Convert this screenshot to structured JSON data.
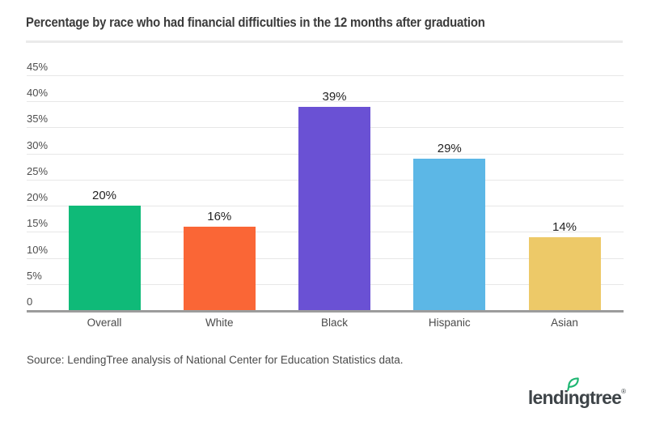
{
  "header": {
    "title": "Percentage by race who had financial difficulties in the 12 months after graduation"
  },
  "chart_data": {
    "type": "bar",
    "title": "Percentage by race who had financial difficulties in the 12 months after graduation",
    "categories": [
      "Overall",
      "White",
      "Black",
      "Hispanic",
      "Asian"
    ],
    "values": [
      20,
      16,
      39,
      29,
      14
    ],
    "value_labels": [
      "20%",
      "16%",
      "39%",
      "29%",
      "14%"
    ],
    "bar_colors": [
      "#0FBA78",
      "#FA6636",
      "#6A51D4",
      "#5CB7E6",
      "#EDC968"
    ],
    "xlabel": "",
    "ylabel": "",
    "ylim": [
      0,
      45
    ],
    "grid": true,
    "legend": "none",
    "yticks": [
      {
        "value": 45,
        "label": "45%"
      },
      {
        "value": 40,
        "label": "40%"
      },
      {
        "value": 35,
        "label": "35%"
      },
      {
        "value": 30,
        "label": "30%"
      },
      {
        "value": 25,
        "label": "25%"
      },
      {
        "value": 20,
        "label": "20%"
      },
      {
        "value": 15,
        "label": "15%"
      },
      {
        "value": 10,
        "label": "10%"
      },
      {
        "value": 5,
        "label": "5%"
      },
      {
        "value": 0,
        "label": "0"
      }
    ]
  },
  "footer": {
    "source": "Source: LendingTree analysis of National Center for Education Statistics data.",
    "logo_text": "lendingtree",
    "logo_trademark": "®"
  },
  "colors": {
    "background": "#ffffff",
    "title_text": "#3b3b3b",
    "gridline": "#e7e7e7",
    "axis_line": "#9c9c9c",
    "divider": "#eaeaea",
    "tick_text": "#4d4d4d",
    "value_text": "#242424",
    "source_text": "#4a4a4a",
    "logo_text": "#3e4448",
    "leaf_green": "#1EB672"
  }
}
